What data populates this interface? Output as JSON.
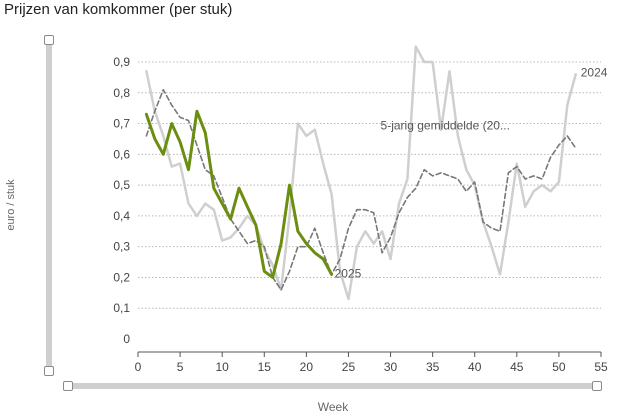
{
  "title": "Prijzen van komkommer (per stuk)",
  "colors": {
    "series_2025": "#6b8e11",
    "series_2024": "#cfcfcf",
    "series_avg": "#777777",
    "grid": "#b7b7b7",
    "axis": "#555555",
    "slider_track": "#cfcfcf"
  },
  "chart_data": {
    "type": "line",
    "title": "Prijzen van komkommer (per stuk)",
    "xlabel": "Week",
    "ylabel": "euro / stuk",
    "xlim": [
      0,
      55
    ],
    "ylim": [
      0,
      0.9
    ],
    "x_ticks": [
      0,
      5,
      10,
      15,
      20,
      25,
      30,
      35,
      40,
      45,
      50,
      55
    ],
    "y_ticks": [
      {
        "value": 0,
        "label": "0"
      },
      {
        "value": 0.1,
        "label": "0,1"
      },
      {
        "value": 0.2,
        "label": "0,2"
      },
      {
        "value": 0.3,
        "label": "0,3"
      },
      {
        "value": 0.4,
        "label": "0,4"
      },
      {
        "value": 0.5,
        "label": "0,5"
      },
      {
        "value": 0.6,
        "label": "0,6"
      },
      {
        "value": 0.7,
        "label": "0,7"
      },
      {
        "value": 0.8,
        "label": "0,8"
      },
      {
        "value": 0.9,
        "label": "0,9"
      }
    ],
    "grid": "horizontal dotted",
    "series": [
      {
        "name": "2024",
        "style": "solid",
        "x": [
          1,
          2,
          3,
          4,
          5,
          6,
          7,
          8,
          9,
          10,
          11,
          12,
          13,
          14,
          15,
          16,
          17,
          18,
          19,
          20,
          21,
          22,
          23,
          24,
          25,
          26,
          27,
          28,
          29,
          30,
          31,
          32,
          33,
          34,
          35,
          36,
          37,
          38,
          39,
          40,
          41,
          42,
          43,
          44,
          45,
          46,
          47,
          48,
          49,
          50,
          51,
          52
        ],
        "values": [
          0.87,
          0.74,
          0.66,
          0.56,
          0.57,
          0.44,
          0.4,
          0.44,
          0.42,
          0.32,
          0.33,
          0.36,
          0.4,
          0.37,
          0.29,
          0.24,
          0.16,
          0.4,
          0.7,
          0.66,
          0.68,
          0.57,
          0.47,
          0.22,
          0.13,
          0.3,
          0.35,
          0.31,
          0.35,
          0.26,
          0.44,
          0.52,
          0.95,
          0.9,
          0.9,
          0.68,
          0.87,
          0.66,
          0.55,
          0.5,
          0.38,
          0.3,
          0.21,
          0.38,
          0.57,
          0.43,
          0.48,
          0.5,
          0.48,
          0.51,
          0.76,
          0.86
        ]
      },
      {
        "name": "5-jarig gemiddelde (20...",
        "style": "dashed",
        "x": [
          1,
          2,
          3,
          4,
          5,
          6,
          7,
          8,
          9,
          10,
          11,
          12,
          13,
          14,
          15,
          16,
          17,
          18,
          19,
          20,
          21,
          22,
          23,
          24,
          25,
          26,
          27,
          28,
          29,
          30,
          31,
          32,
          33,
          34,
          35,
          36,
          37,
          38,
          39,
          40,
          41,
          42,
          43,
          44,
          45,
          46,
          47,
          48,
          49,
          50,
          51,
          52
        ],
        "values": [
          0.66,
          0.74,
          0.81,
          0.76,
          0.72,
          0.71,
          0.63,
          0.55,
          0.53,
          0.46,
          0.39,
          0.35,
          0.31,
          0.32,
          0.3,
          0.2,
          0.16,
          0.22,
          0.3,
          0.3,
          0.36,
          0.28,
          0.21,
          0.26,
          0.36,
          0.42,
          0.42,
          0.41,
          0.28,
          0.33,
          0.41,
          0.46,
          0.49,
          0.55,
          0.53,
          0.54,
          0.53,
          0.52,
          0.48,
          0.51,
          0.38,
          0.36,
          0.35,
          0.54,
          0.56,
          0.52,
          0.53,
          0.52,
          0.59,
          0.63,
          0.66,
          0.62
        ]
      },
      {
        "name": "2025",
        "style": "solid",
        "x": [
          1,
          2,
          3,
          4,
          5,
          6,
          7,
          8,
          9,
          10,
          11,
          12,
          13,
          14,
          15,
          16,
          17,
          18,
          19,
          20,
          21,
          22,
          23
        ],
        "values": [
          0.73,
          0.65,
          0.6,
          0.7,
          0.64,
          0.55,
          0.74,
          0.67,
          0.49,
          0.44,
          0.39,
          0.49,
          0.43,
          0.37,
          0.22,
          0.2,
          0.31,
          0.5,
          0.35,
          0.31,
          0.28,
          0.26,
          0.21
        ]
      }
    ],
    "annotations": [
      {
        "text": "2024",
        "series": "2024"
      },
      {
        "text": "5-jarig gemiddelde (20...",
        "series": "5-jarig gemiddelde (20..."
      },
      {
        "text": "2025",
        "series": "2025"
      }
    ]
  }
}
